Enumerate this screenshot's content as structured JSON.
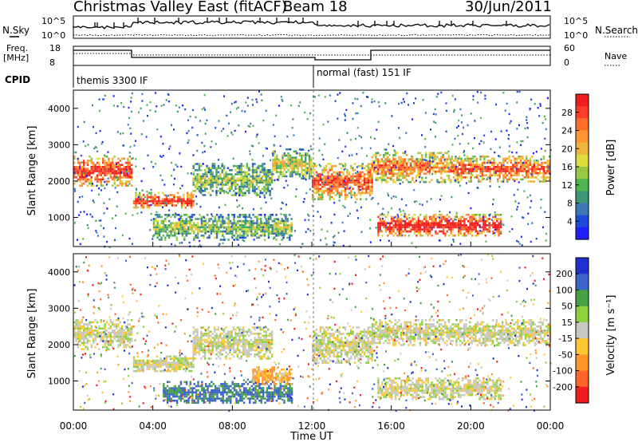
{
  "header": {
    "title": "Christmas Valley East (fitACF)",
    "beam": "Beam 18",
    "date": "30/Jun/2011"
  },
  "top_panels": {
    "nsky_label": "N.Sky",
    "nsearch_label": "N.Search",
    "count_ticks": [
      "10^5",
      "10^0"
    ],
    "freq_label": "Freq.",
    "freq_unit": "[MHz]",
    "freq_ticks": [
      "18",
      "8"
    ],
    "nave_ticks": [
      "60",
      "0"
    ],
    "nave_label": "Nave",
    "cpid_label": "CPID",
    "cpid_segments": [
      {
        "label": "themis 3300 IF",
        "start_hr": 0.0
      },
      {
        "label": "normal (fast) 151 IF",
        "start_hr": 12.0
      }
    ]
  },
  "chart_data": [
    {
      "type": "heatmap",
      "name": "power",
      "x": {
        "label": "Time UT",
        "range_hr": [
          0,
          24
        ]
      },
      "y": {
        "label": "Slant Range [km]",
        "range": [
          200,
          4500
        ],
        "ticks": [
          1000,
          2000,
          3000,
          4000
        ]
      },
      "colorbar": {
        "label": "Power [dB]",
        "ticks": [
          "4",
          "8",
          "12",
          "16",
          "20",
          "24",
          "28"
        ],
        "colors": [
          "#2020ff",
          "#1e4ad8",
          "#3c78b4",
          "#3c9678",
          "#50b450",
          "#96c846",
          "#dcdc3c",
          "#f0b43c",
          "#ff9632",
          "#ff6e28",
          "#ff3c28",
          "#f01e1e"
        ]
      },
      "bands": [
        {
          "t0": 0.0,
          "t1": 2.9,
          "r0": 1900,
          "r1": 2700,
          "level": 24
        },
        {
          "t0": 3.0,
          "t1": 6.0,
          "r0": 1250,
          "r1": 1700,
          "level": 24
        },
        {
          "t0": 6.0,
          "t1": 10.0,
          "r0": 1600,
          "r1": 2500,
          "level": 12
        },
        {
          "t0": 10.0,
          "t1": 12.0,
          "r0": 2100,
          "r1": 2900,
          "level": 14
        },
        {
          "t0": 12.0,
          "t1": 15.0,
          "r0": 1500,
          "r1": 2500,
          "level": 22
        },
        {
          "t0": 15.0,
          "t1": 19.0,
          "r0": 2000,
          "r1": 2800,
          "level": 20
        },
        {
          "t0": 19.0,
          "t1": 24.0,
          "r0": 2000,
          "r1": 2700,
          "level": 22
        },
        {
          "t0": 15.3,
          "t1": 21.5,
          "r0": 500,
          "r1": 1100,
          "level": 26
        },
        {
          "t0": 4.0,
          "t1": 11.0,
          "r0": 400,
          "r1": 1100,
          "level": 12
        }
      ]
    },
    {
      "type": "heatmap",
      "name": "velocity",
      "x": {
        "label": "Time UT",
        "range_hr": [
          0,
          24
        ],
        "ticks": [
          "00:00",
          "04:00",
          "08:00",
          "12:00",
          "16:00",
          "20:00",
          "00:00"
        ]
      },
      "y": {
        "label": "Slant Range [km]",
        "range": [
          200,
          4500
        ],
        "ticks": [
          1000,
          2000,
          3000,
          4000
        ]
      },
      "colorbar": {
        "label": "Velocity [m s⁻¹]",
        "ticks": [
          "200",
          "100",
          "50",
          "15",
          "-15",
          "-50",
          "-100",
          "-200"
        ],
        "colors": [
          "#2030d0",
          "#3c64c8",
          "#46a046",
          "#8cd23c",
          "#c8c8c0",
          "#ffc832",
          "#ff9628",
          "#ff6428",
          "#f01e1e"
        ]
      },
      "bands": [
        {
          "t0": 0.0,
          "t1": 2.9,
          "r0": 1900,
          "r1": 2700,
          "v": 0
        },
        {
          "t0": 3.0,
          "t1": 6.0,
          "r0": 1250,
          "r1": 1700,
          "v": 0
        },
        {
          "t0": 6.0,
          "t1": 10.0,
          "r0": 1600,
          "r1": 2500,
          "v": 0
        },
        {
          "t0": 12.0,
          "t1": 15.0,
          "r0": 1500,
          "r1": 2500,
          "v": 0
        },
        {
          "t0": 15.0,
          "t1": 24.0,
          "r0": 2000,
          "r1": 2700,
          "v": 0
        },
        {
          "t0": 15.3,
          "t1": 21.5,
          "r0": 500,
          "r1": 1100,
          "v": 0
        },
        {
          "t0": 4.5,
          "t1": 11.0,
          "r0": 400,
          "r1": 1000,
          "v": 80
        },
        {
          "t0": 9.0,
          "t1": 11.0,
          "r0": 900,
          "r1": 1400,
          "v": -40
        }
      ]
    }
  ]
}
